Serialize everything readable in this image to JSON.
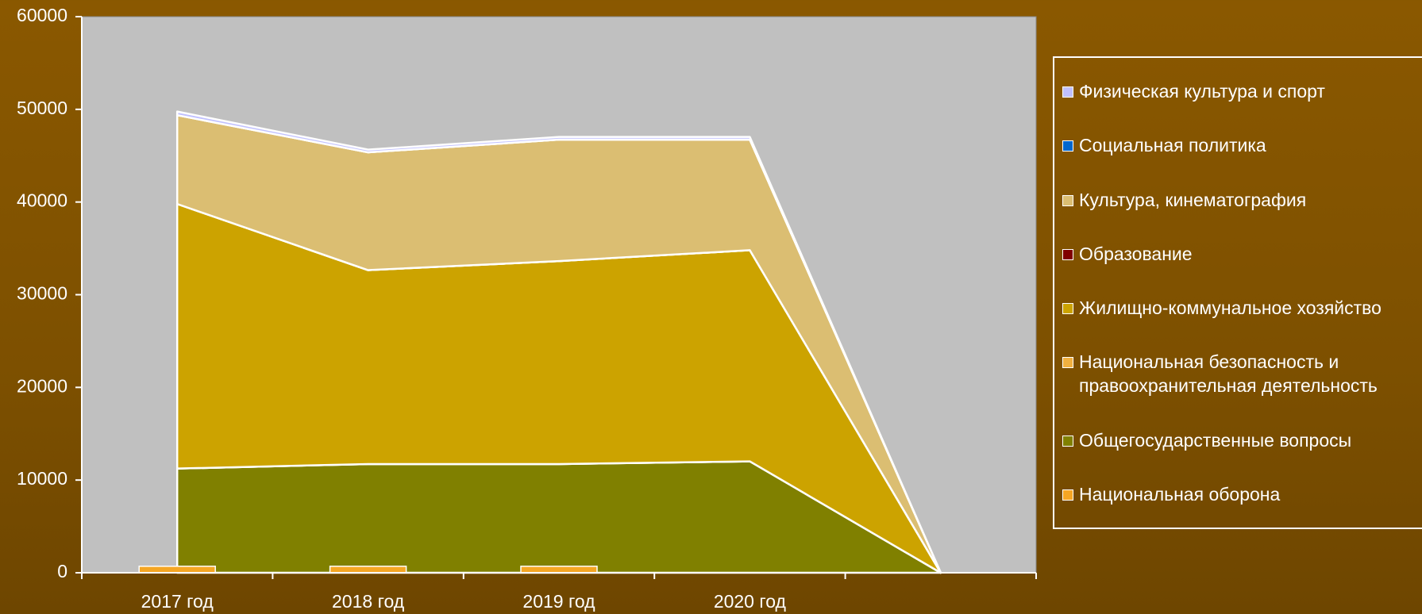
{
  "chart_data": {
    "type": "area",
    "categories": [
      "2017 год",
      "2018 год",
      "2019 год",
      "2020 год",
      null
    ],
    "ylim": [
      0,
      60000
    ],
    "yticks": [
      0,
      10000,
      20000,
      30000,
      40000,
      50000,
      60000
    ],
    "series": [
      {
        "name": "Национальная оборона",
        "color": "#f5a623",
        "type": "bar",
        "values": [
          700,
          700,
          700,
          0,
          0
        ]
      },
      {
        "name": "Общегосударственные вопросы",
        "color": "#808000",
        "values": [
          11240,
          11730,
          11730,
          12020,
          0
        ]
      },
      {
        "name": "Национальная безопасность и правоохранительная деятельность",
        "color": "#f0b040",
        "values": [
          0,
          0,
          0,
          0,
          0
        ]
      },
      {
        "name": "Жилищно-коммунальное хозяйство",
        "color": "#cca300",
        "values": [
          28550,
          20920,
          21900,
          22780,
          0
        ]
      },
      {
        "name": "Образование",
        "color": "#800000",
        "values": [
          0,
          0,
          0,
          0,
          0
        ]
      },
      {
        "name": "Культура, кинематография",
        "color": "#dbbe72",
        "values": [
          9580,
          12710,
          13100,
          11930,
          0
        ]
      },
      {
        "name": "Социальная политика",
        "color": "#0066cc",
        "values": [
          0,
          0,
          0,
          0,
          0
        ]
      },
      {
        "name": "Физическая культура и спорт",
        "color": "#c0c0ff",
        "values": [
          390,
          290,
          290,
          290,
          0
        ]
      }
    ]
  }
}
